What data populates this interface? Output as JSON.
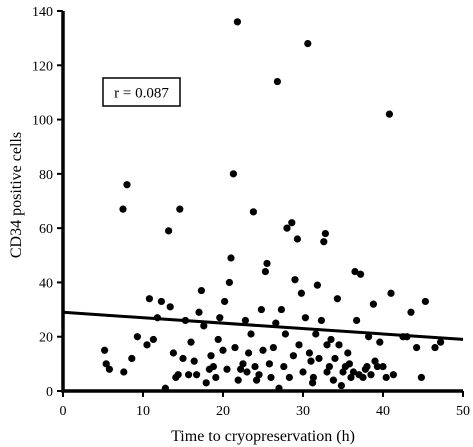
{
  "chart_data": {
    "type": "scatter",
    "title": "",
    "xlabel": "Time to cryopreservation (h)",
    "ylabel": "CD34 positive cells",
    "xlim": [
      0,
      50
    ],
    "ylim": [
      0,
      140
    ],
    "xticks": [
      0,
      10,
      20,
      30,
      40,
      50
    ],
    "yticks": [
      0,
      20,
      40,
      60,
      80,
      100,
      120,
      140
    ],
    "grid": false,
    "annotation": "r = 0.087",
    "trendline": {
      "x": [
        0,
        50
      ],
      "y": [
        29,
        19
      ]
    },
    "points": [
      [
        5.2,
        15
      ],
      [
        5.4,
        10
      ],
      [
        5.8,
        8
      ],
      [
        7.5,
        67
      ],
      [
        8.0,
        76
      ],
      [
        7.6,
        7
      ],
      [
        8.6,
        12
      ],
      [
        9.3,
        20
      ],
      [
        10.5,
        17
      ],
      [
        10.8,
        34
      ],
      [
        11.3,
        19
      ],
      [
        11.8,
        27
      ],
      [
        12.3,
        33
      ],
      [
        12.8,
        1
      ],
      [
        13.2,
        59
      ],
      [
        13.4,
        31
      ],
      [
        13.8,
        14
      ],
      [
        14.1,
        5
      ],
      [
        14.6,
        67
      ],
      [
        14.4,
        6
      ],
      [
        15.0,
        12
      ],
      [
        15.3,
        26
      ],
      [
        15.7,
        6
      ],
      [
        16.0,
        18
      ],
      [
        16.4,
        11
      ],
      [
        16.7,
        6
      ],
      [
        17.0,
        29
      ],
      [
        17.3,
        37
      ],
      [
        17.6,
        24
      ],
      [
        17.9,
        3
      ],
      [
        18.3,
        8
      ],
      [
        18.5,
        13
      ],
      [
        18.8,
        9
      ],
      [
        19.1,
        5
      ],
      [
        19.4,
        19
      ],
      [
        19.6,
        27
      ],
      [
        20.0,
        15
      ],
      [
        20.2,
        33
      ],
      [
        20.5,
        8
      ],
      [
        20.8,
        40
      ],
      [
        21.0,
        49
      ],
      [
        21.3,
        80
      ],
      [
        21.5,
        16
      ],
      [
        21.8,
        136
      ],
      [
        21.9,
        4
      ],
      [
        22.2,
        8
      ],
      [
        22.5,
        10
      ],
      [
        22.8,
        26
      ],
      [
        23.0,
        7
      ],
      [
        23.2,
        14
      ],
      [
        23.5,
        21
      ],
      [
        23.8,
        66
      ],
      [
        24.0,
        9
      ],
      [
        24.2,
        4
      ],
      [
        24.5,
        6
      ],
      [
        24.8,
        30
      ],
      [
        25.0,
        15
      ],
      [
        25.3,
        44
      ],
      [
        25.5,
        47
      ],
      [
        25.8,
        10
      ],
      [
        26.0,
        5
      ],
      [
        26.3,
        16
      ],
      [
        26.6,
        25
      ],
      [
        26.8,
        114
      ],
      [
        27.0,
        1
      ],
      [
        27.3,
        30
      ],
      [
        27.6,
        9
      ],
      [
        27.8,
        21
      ],
      [
        28.0,
        60
      ],
      [
        28.3,
        5
      ],
      [
        28.6,
        62
      ],
      [
        28.8,
        13
      ],
      [
        29.0,
        41
      ],
      [
        29.3,
        56
      ],
      [
        29.5,
        17
      ],
      [
        29.8,
        36
      ],
      [
        30.0,
        7
      ],
      [
        30.3,
        27
      ],
      [
        30.6,
        128
      ],
      [
        30.8,
        14
      ],
      [
        31.0,
        11
      ],
      [
        31.3,
        5
      ],
      [
        31.6,
        21
      ],
      [
        31.8,
        39
      ],
      [
        32.0,
        12
      ],
      [
        32.3,
        26
      ],
      [
        32.6,
        55
      ],
      [
        32.8,
        58
      ],
      [
        33.0,
        7
      ],
      [
        33.3,
        9
      ],
      [
        33.5,
        19
      ],
      [
        33.8,
        4
      ],
      [
        34.0,
        12
      ],
      [
        34.3,
        34
      ],
      [
        34.5,
        17
      ],
      [
        34.8,
        2
      ],
      [
        35.0,
        7
      ],
      [
        35.3,
        9
      ],
      [
        35.6,
        14
      ],
      [
        35.8,
        10
      ],
      [
        36.0,
        5
      ],
      [
        36.3,
        7
      ],
      [
        36.5,
        44
      ],
      [
        36.7,
        26
      ],
      [
        37.0,
        6
      ],
      [
        37.2,
        43
      ],
      [
        37.5,
        5
      ],
      [
        37.8,
        8
      ],
      [
        38.0,
        9
      ],
      [
        38.2,
        20
      ],
      [
        38.5,
        6
      ],
      [
        38.8,
        32
      ],
      [
        39.0,
        11
      ],
      [
        39.3,
        9
      ],
      [
        39.6,
        18
      ],
      [
        40.0,
        9
      ],
      [
        40.4,
        5
      ],
      [
        40.8,
        102
      ],
      [
        41.0,
        36
      ],
      [
        41.3,
        6
      ],
      [
        42.5,
        20
      ],
      [
        43.0,
        20
      ],
      [
        43.5,
        29
      ],
      [
        44.2,
        16
      ],
      [
        44.8,
        5
      ],
      [
        45.3,
        33
      ],
      [
        46.5,
        16
      ],
      [
        47.2,
        18
      ],
      [
        31.2,
        3
      ],
      [
        33.0,
        17
      ]
    ]
  }
}
